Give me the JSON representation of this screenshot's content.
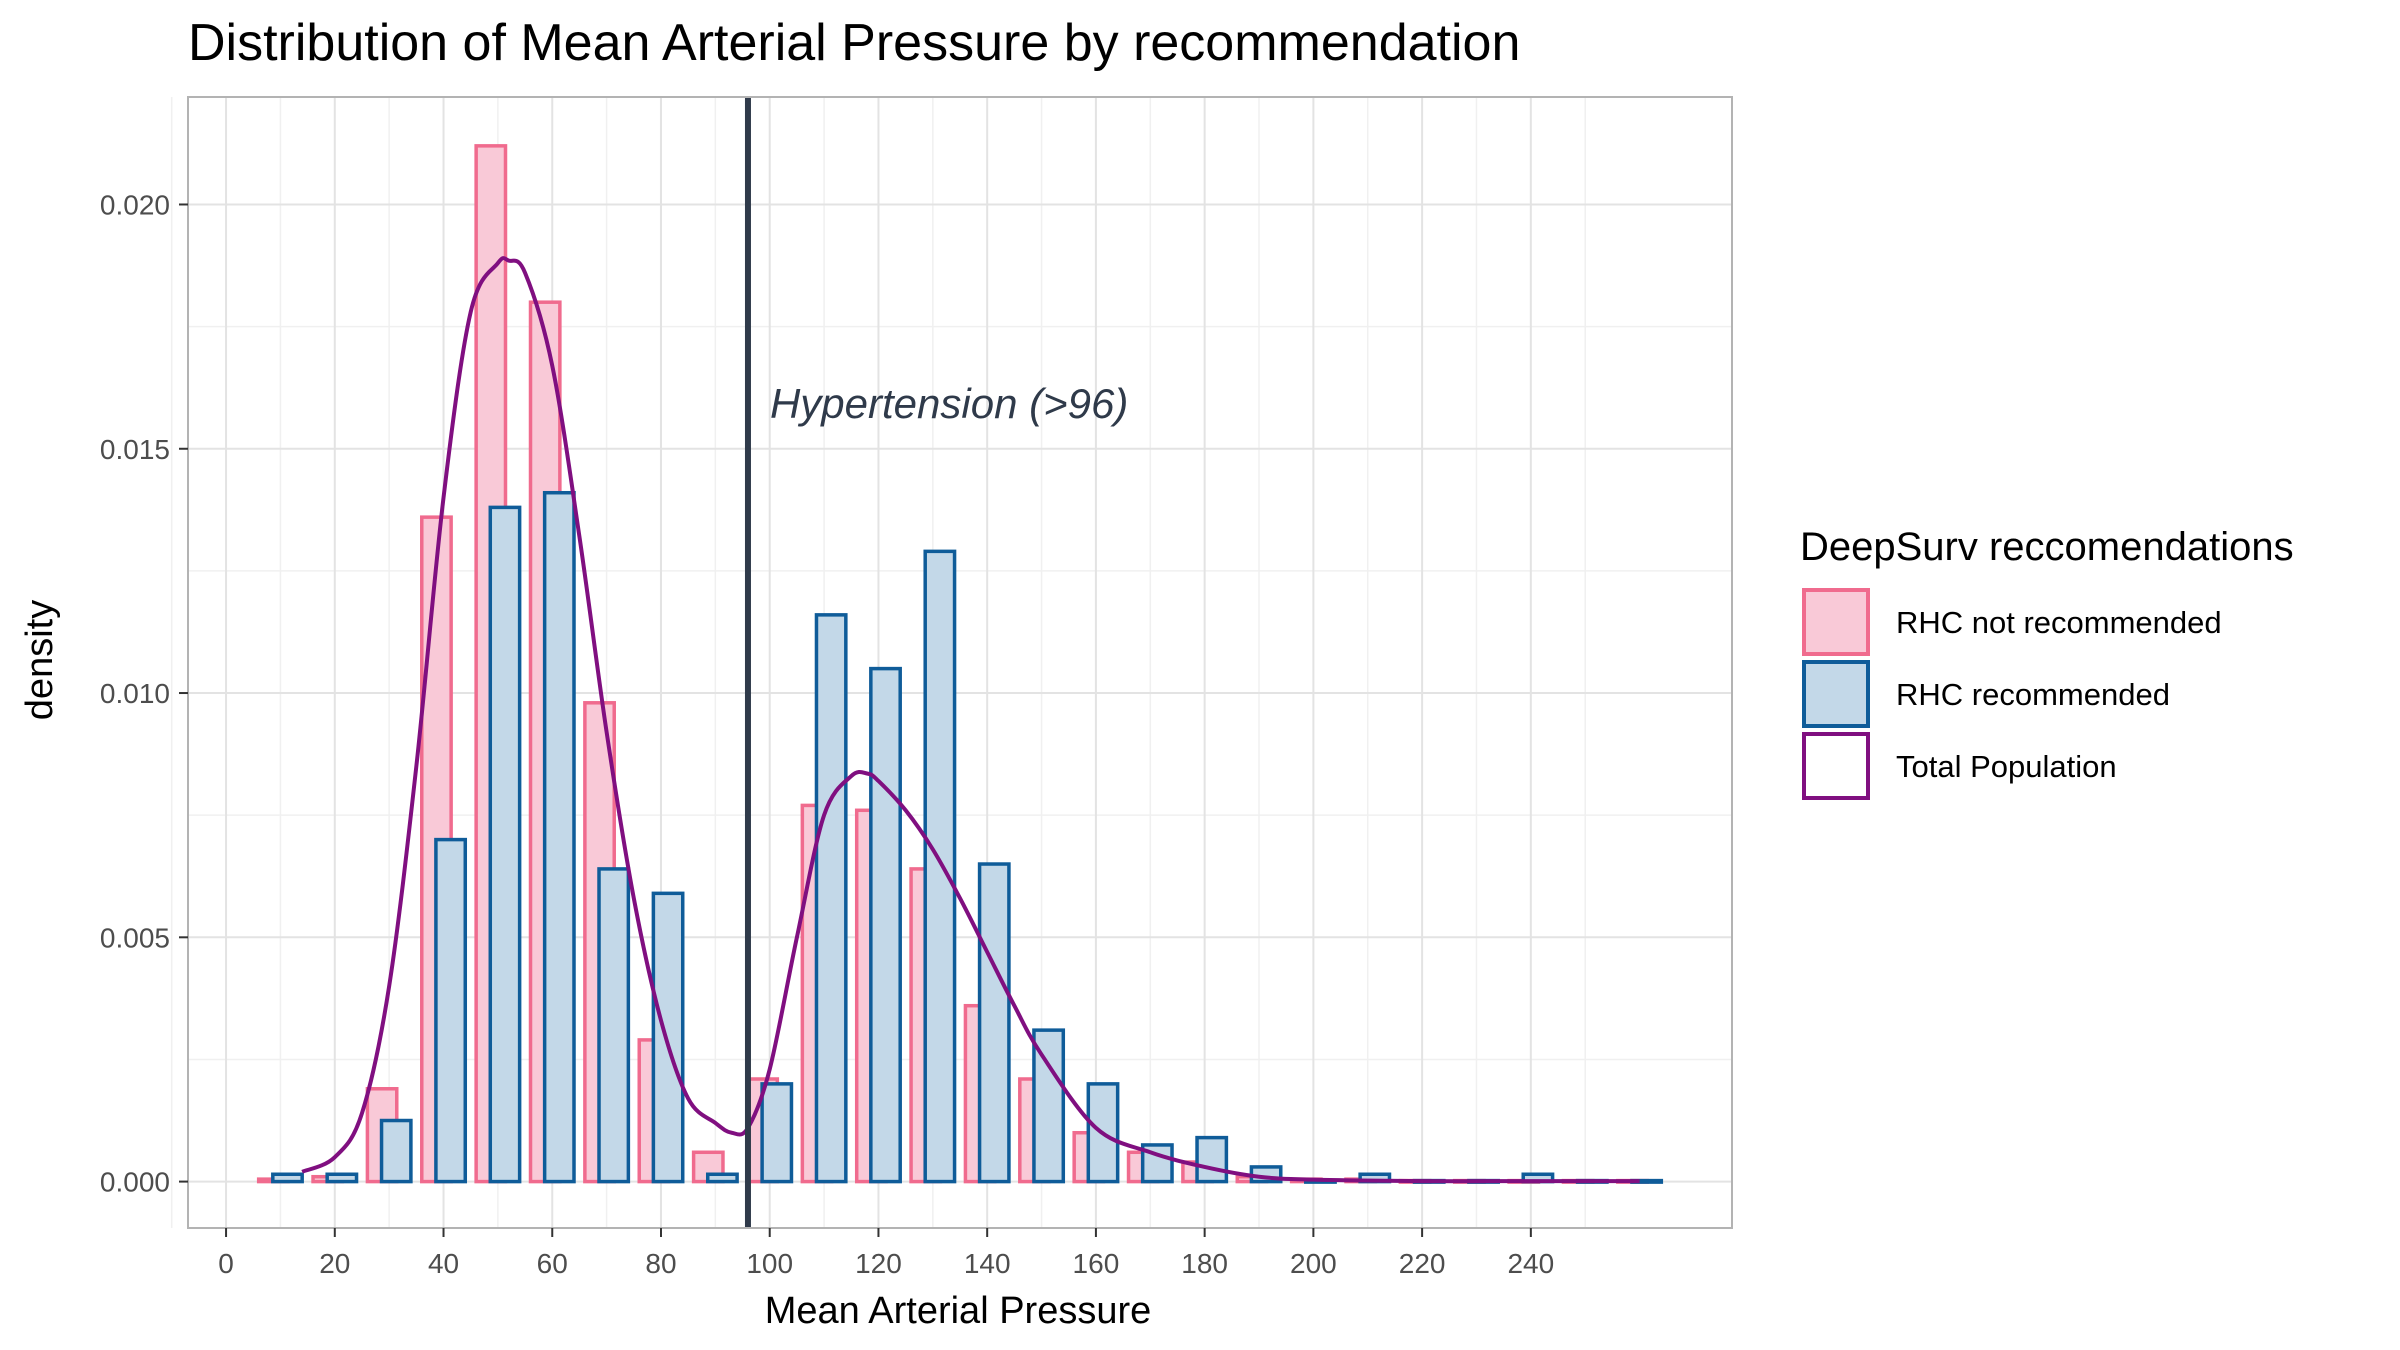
{
  "chart_data": {
    "type": "bar",
    "title": "Distribution of Mean Arterial Pressure by recommendation",
    "xlabel": "Mean Arterial Pressure",
    "ylabel": "density",
    "xlim": [
      -7,
      277
    ],
    "ylim": [
      -0.00095,
      0.0222
    ],
    "x_ticks": [
      0,
      20,
      40,
      60,
      80,
      100,
      120,
      140,
      160,
      180,
      200,
      220,
      240
    ],
    "x_tick_labels": [
      "0",
      "20",
      "40",
      "60",
      "80",
      "100",
      "120",
      "140",
      "160",
      "180",
      "200",
      "220",
      "240"
    ],
    "y_ticks": [
      0,
      0.005,
      0.01,
      0.015,
      0.02
    ],
    "y_tick_labels": [
      "0.000",
      "0.005",
      "0.010",
      "0.015",
      "0.020"
    ],
    "grid": true,
    "bin_centers": [
      10,
      20,
      30,
      40,
      50,
      60,
      70,
      80,
      90,
      100,
      110,
      120,
      130,
      140,
      150,
      160,
      170,
      180,
      190,
      200,
      210,
      220,
      230,
      240,
      250,
      260
    ],
    "series": [
      {
        "name": "RHC not recommended",
        "fill": "#f9c9d7",
        "stroke": "#f06b8e",
        "values": [
          5e-05,
          0.0001,
          0.0019,
          0.0136,
          0.0212,
          0.018,
          0.0098,
          0.0029,
          0.0006,
          0.0021,
          0.0077,
          0.0076,
          0.0064,
          0.0036,
          0.0021,
          0.001,
          0.0006,
          0.0004,
          0.0001,
          5e-05,
          5e-05,
          2e-05,
          2e-05,
          2e-05,
          2e-05,
          2e-05
        ]
      },
      {
        "name": "RHC recommended",
        "fill": "#c3d8e8",
        "stroke": "#0f5c99",
        "values": [
          0.00015,
          0.00015,
          0.00125,
          0.007,
          0.0138,
          0.0141,
          0.0064,
          0.0059,
          0.00015,
          0.002,
          0.0116,
          0.0105,
          0.0129,
          0.0065,
          0.0031,
          0.002,
          0.00075,
          0.0009,
          0.0003,
          2e-05,
          0.00015,
          2e-05,
          2e-05,
          0.00015,
          2e-05,
          2e-05
        ]
      }
    ],
    "density_curve": {
      "name": "Total Population",
      "stroke": "#800f80",
      "x": [
        14,
        20,
        25,
        30,
        35,
        40,
        45,
        50,
        52,
        55,
        60,
        65,
        70,
        75,
        80,
        85,
        90,
        93,
        96,
        100,
        105,
        110,
        115,
        118,
        120,
        125,
        130,
        135,
        140,
        145,
        150,
        160,
        170,
        180,
        190,
        200,
        220,
        240,
        260
      ],
      "y": [
        0.0002,
        0.0005,
        0.0014,
        0.004,
        0.0085,
        0.014,
        0.0178,
        0.0188,
        0.01885,
        0.0186,
        0.0167,
        0.0132,
        0.0092,
        0.0058,
        0.0033,
        0.0017,
        0.0012,
        0.001,
        0.0011,
        0.0023,
        0.005,
        0.0075,
        0.0083,
        0.00835,
        0.0082,
        0.0076,
        0.0068,
        0.0058,
        0.0047,
        0.0036,
        0.0026,
        0.0011,
        0.0006,
        0.0003,
        0.0001,
        4e-05,
        1e-05,
        1e-05,
        1e-05
      ]
    },
    "reference_line": {
      "x": 96,
      "label": "Hypertension (>96)",
      "stroke": "#2f3a4a"
    },
    "legend": {
      "title": "DeepSurv reccomendations",
      "placement": "right",
      "items": [
        {
          "label": "RHC not recommended",
          "fill": "#f9c9d7",
          "stroke": "#f06b8e"
        },
        {
          "label": "RHC recommended",
          "fill": "#c3d8e8",
          "stroke": "#0f5c99"
        },
        {
          "label": "Total Population",
          "fill": "#ffffff",
          "stroke": "#800f80"
        }
      ]
    }
  }
}
